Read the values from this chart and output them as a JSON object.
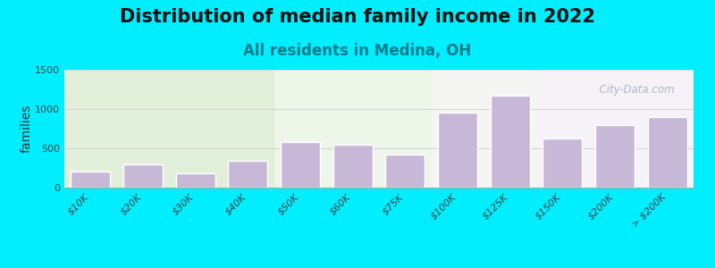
{
  "title": "Distribution of median family income in 2022",
  "subtitle": "All residents in Medina, OH",
  "ylabel": "families",
  "categories": [
    "$10K",
    "$20K",
    "$30K",
    "$40K",
    "$50K",
    "$60K",
    "$75K",
    "$100K",
    "$125K",
    "$150K",
    "$200K",
    "> $200K"
  ],
  "values": [
    200,
    290,
    185,
    340,
    580,
    545,
    415,
    950,
    1165,
    630,
    790,
    900
  ],
  "bar_color": "#c8b8d8",
  "bar_edge_color": "#ffffff",
  "background_outer": "#00eeff",
  "ylim": [
    0,
    1500
  ],
  "yticks": [
    0,
    500,
    1000,
    1500
  ],
  "title_fontsize": 15,
  "subtitle_fontsize": 12,
  "subtitle_color": "#007b8a",
  "ylabel_fontsize": 10,
  "watermark_text": "  City-Data.com",
  "watermark_color": "#a0aab8",
  "title_color": "#111111"
}
